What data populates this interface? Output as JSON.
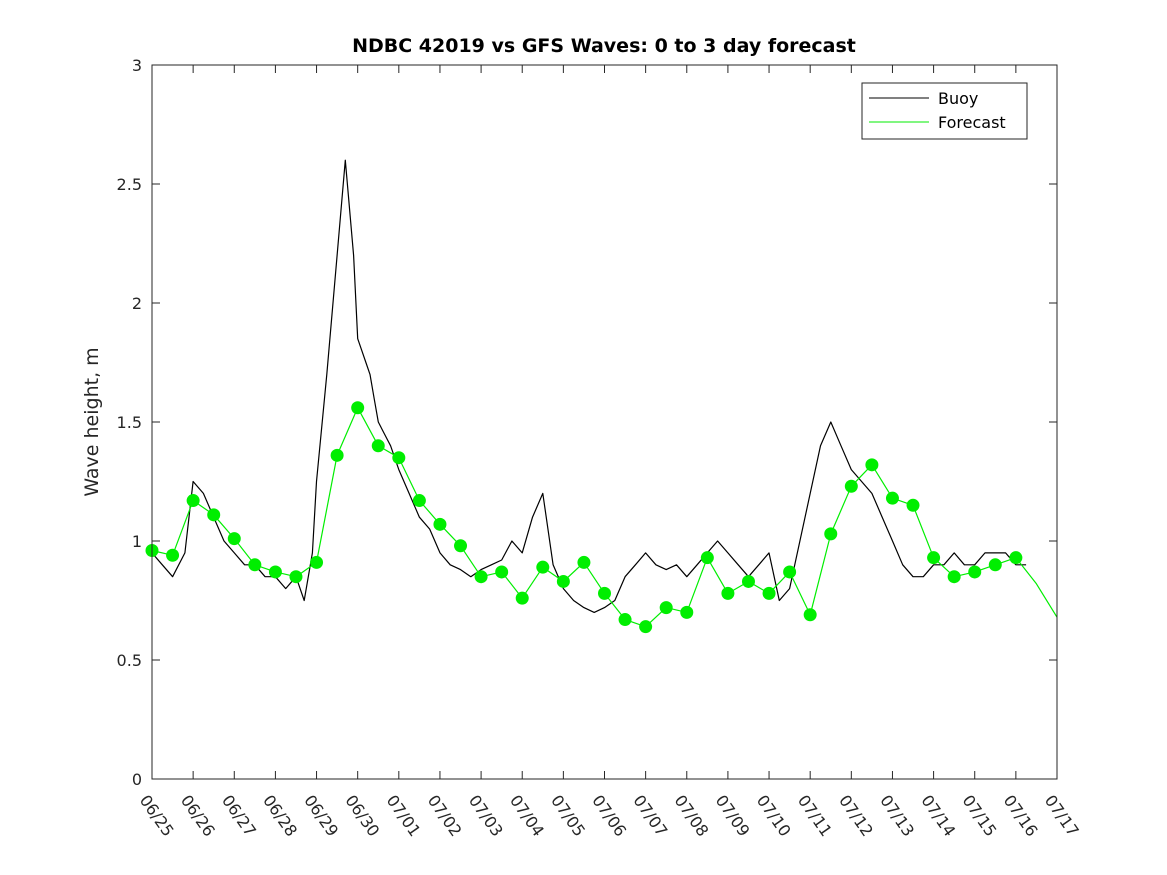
{
  "chart_data": {
    "type": "line",
    "title": "NDBC 42019 vs GFS Waves: 0 to 3 day forecast",
    "xlabel": "",
    "ylabel": "Wave height, m",
    "xlim": [
      0,
      22
    ],
    "ylim": [
      0,
      3
    ],
    "x_ticks": [
      "06/25",
      "06/26",
      "06/27",
      "06/28",
      "06/29",
      "06/30",
      "07/01",
      "07/02",
      "07/03",
      "07/04",
      "07/05",
      "07/06",
      "07/07",
      "07/08",
      "07/09",
      "07/10",
      "07/11",
      "07/12",
      "07/13",
      "07/14",
      "07/15",
      "07/16",
      "07/17"
    ],
    "y_ticks": [
      0,
      0.5,
      1,
      1.5,
      2,
      2.5,
      3
    ],
    "y_tick_labels": [
      "0",
      "0.5",
      "1",
      "1.5",
      "2",
      "2.5",
      "3"
    ],
    "legend": {
      "position": "top-right",
      "entries": [
        "Buoy",
        "Forecast"
      ]
    },
    "colors": {
      "buoy": "#000000",
      "forecast": "#00ee00",
      "axis": "#262626"
    },
    "series": [
      {
        "name": "Buoy",
        "x": [
          0.0,
          0.25,
          0.5,
          0.8,
          1.0,
          1.25,
          1.5,
          1.75,
          2.0,
          2.25,
          2.5,
          2.75,
          3.0,
          3.25,
          3.5,
          3.7,
          3.9,
          4.0,
          4.25,
          4.5,
          4.7,
          4.9,
          5.0,
          5.1,
          5.2,
          5.3,
          5.4,
          5.5,
          5.65,
          5.8,
          6.0,
          6.25,
          6.5,
          6.75,
          7.0,
          7.25,
          7.5,
          7.75,
          8.0,
          8.25,
          8.5,
          8.75,
          9.0,
          9.25,
          9.5,
          9.75,
          10.0,
          10.25,
          10.5,
          10.75,
          11.0,
          11.25,
          11.5,
          11.75,
          12.0,
          12.25,
          12.5,
          12.75,
          13.0,
          13.25,
          13.5,
          13.75,
          14.0,
          14.25,
          14.5,
          14.75,
          15.0,
          15.25,
          15.5,
          15.75,
          16.0,
          16.25,
          16.5,
          16.75,
          17.0,
          17.25,
          17.5,
          17.75,
          18.0,
          18.25,
          18.5,
          18.75,
          19.0,
          19.25,
          19.5,
          19.75,
          20.0,
          20.25,
          20.5,
          20.75,
          21.0,
          21.25
        ],
        "y": [
          0.95,
          0.9,
          0.85,
          0.95,
          1.25,
          1.2,
          1.1,
          1.0,
          0.95,
          0.9,
          0.9,
          0.85,
          0.85,
          0.8,
          0.85,
          0.75,
          0.95,
          1.25,
          1.7,
          2.2,
          2.6,
          2.2,
          1.85,
          1.8,
          1.75,
          1.7,
          1.6,
          1.5,
          1.45,
          1.4,
          1.3,
          1.2,
          1.1,
          1.05,
          0.95,
          0.9,
          0.88,
          0.85,
          0.88,
          0.9,
          0.92,
          1.0,
          0.95,
          1.1,
          1.2,
          0.9,
          0.8,
          0.75,
          0.72,
          0.7,
          0.72,
          0.75,
          0.85,
          0.9,
          0.95,
          0.9,
          0.88,
          0.9,
          0.85,
          0.9,
          0.95,
          1.0,
          0.95,
          0.9,
          0.85,
          0.9,
          0.95,
          0.75,
          0.8,
          1.0,
          1.2,
          1.4,
          1.5,
          1.4,
          1.3,
          1.25,
          1.2,
          1.1,
          1.0,
          0.9,
          0.85,
          0.85,
          0.9,
          0.9,
          0.95,
          0.9,
          0.9,
          0.95,
          0.95,
          0.95,
          0.9,
          0.9
        ]
      },
      {
        "name": "Forecast",
        "x": [
          0.0,
          0.5,
          1.0,
          1.5,
          2.0,
          2.5,
          3.0,
          3.5,
          4.0,
          4.5,
          5.0,
          5.5,
          6.0,
          6.5,
          7.0,
          7.5,
          8.0,
          8.5,
          9.0,
          9.5,
          10.0,
          10.5,
          11.0,
          11.5,
          12.0,
          12.5,
          13.0,
          13.5,
          14.0,
          14.5,
          15.0,
          15.5,
          16.0,
          16.5,
          17.0,
          17.5,
          18.0,
          18.5,
          19.0,
          19.5,
          20.0,
          20.5,
          21.0,
          21.5,
          22.0
        ],
        "y": [
          0.96,
          0.94,
          1.17,
          1.11,
          1.01,
          0.9,
          0.87,
          0.85,
          0.91,
          1.36,
          1.56,
          1.4,
          1.35,
          1.17,
          1.07,
          0.98,
          0.85,
          0.87,
          0.76,
          0.89,
          0.83,
          0.91,
          0.78,
          0.67,
          0.64,
          0.72,
          0.7,
          0.93,
          0.78,
          0.83,
          0.78,
          0.87,
          0.69,
          1.03,
          1.23,
          1.32,
          1.18,
          1.15,
          0.93,
          0.85,
          0.87,
          0.9,
          0.93,
          0.82,
          0.68
        ]
      }
    ],
    "forecast_markers": {
      "x": [
        0.0,
        0.5,
        1.0,
        1.5,
        2.0,
        2.5,
        3.0,
        3.5,
        4.0,
        4.5,
        5.0,
        5.5,
        6.0,
        6.5,
        7.0,
        7.5,
        8.0,
        8.5,
        9.0,
        9.5,
        10.0,
        10.5,
        11.0,
        11.5,
        12.0,
        12.5,
        13.0,
        13.5,
        14.0,
        14.5,
        15.0,
        15.5,
        16.0,
        16.5,
        17.0,
        17.5,
        18.0,
        18.5,
        19.0,
        19.5,
        20.0,
        20.5,
        21.0
      ],
      "y": [
        0.96,
        0.94,
        1.17,
        1.11,
        1.01,
        0.9,
        0.87,
        0.85,
        0.91,
        1.36,
        1.56,
        1.4,
        1.35,
        1.17,
        1.07,
        0.98,
        0.85,
        0.87,
        0.76,
        0.89,
        0.83,
        0.91,
        0.78,
        0.67,
        0.64,
        0.72,
        0.7,
        0.93,
        0.78,
        0.83,
        0.78,
        0.87,
        0.69,
        1.03,
        1.23,
        1.32,
        1.18,
        1.15,
        0.93,
        0.85,
        0.87,
        0.9,
        0.93
      ]
    }
  }
}
